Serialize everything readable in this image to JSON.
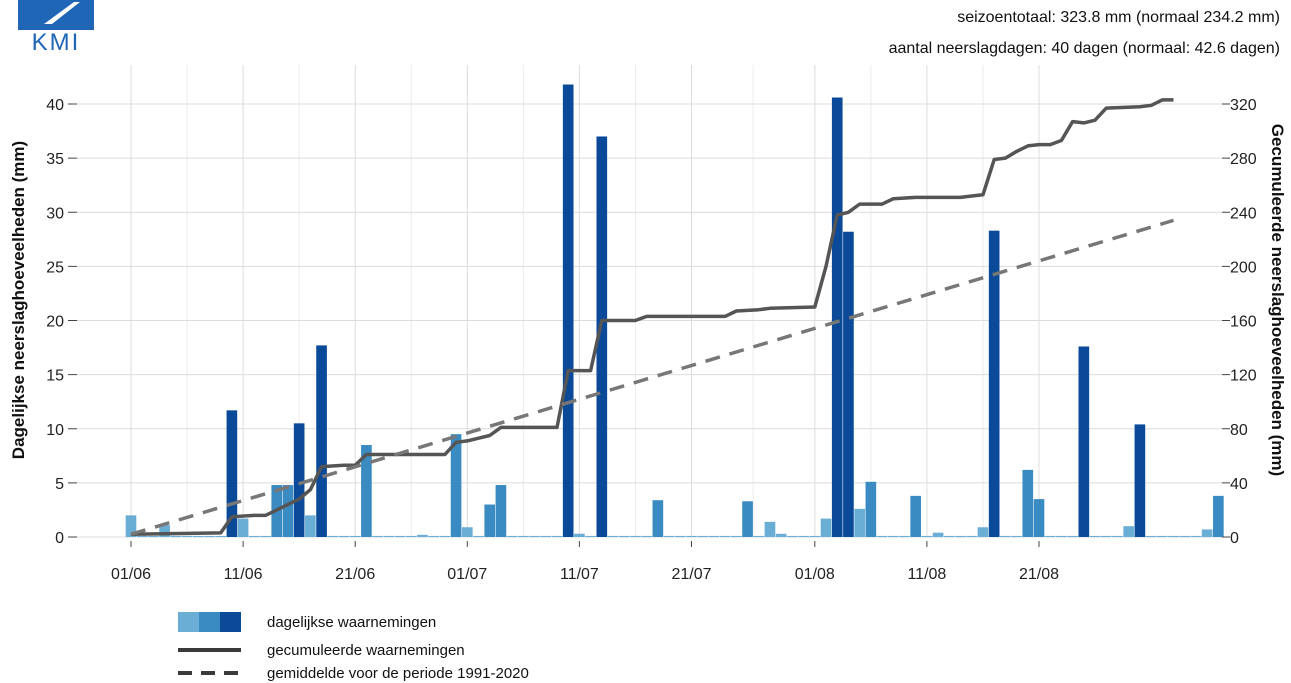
{
  "logo_text": "KMI",
  "header": {
    "season_total": "seizoentotaal: 323.8 mm (normaal 234.2 mm)",
    "rain_days": "aantal neerslagdagen: 40 dagen (normaal: 42.6 dagen)"
  },
  "colors": {
    "light": "#6aaed6",
    "medium": "#3b8bc3",
    "dark": "#0a4a99",
    "cumulative": "#555555",
    "normal": "#777777",
    "logo": "#1f66b7"
  },
  "chart_data": {
    "type": "bar",
    "ylabel_left": "Dagelijkse neerslaghoeveelheden (mm)",
    "ylabel_right": "Gecumuleerde neerslaghoeveelheden (mm)",
    "ylim_left": [
      0,
      42
    ],
    "ylim_right": [
      0,
      336
    ],
    "yticks_left": [
      "0",
      "5",
      "10",
      "15",
      "20",
      "25",
      "30",
      "35",
      "40"
    ],
    "yticks_right": [
      "0",
      "40",
      "80",
      "120",
      "160",
      "200",
      "240",
      "280",
      "320"
    ],
    "x_ticks": [
      {
        "day": 1,
        "label": "01/06"
      },
      {
        "day": 11,
        "label": "11/06"
      },
      {
        "day": 21,
        "label": "21/06"
      },
      {
        "day": 31,
        "label": "01/07"
      },
      {
        "day": 41,
        "label": "11/07"
      },
      {
        "day": 51,
        "label": "21/07"
      },
      {
        "day": 62,
        "label": "01/08"
      },
      {
        "day": 72,
        "label": "11/08"
      },
      {
        "day": 82,
        "label": "21/08"
      }
    ],
    "x_range": [
      1,
      92
    ],
    "grid": true,
    "daily_values": [
      2.0,
      0.1,
      0.1,
      1.1,
      0.1,
      0.1,
      0.1,
      0.1,
      0.1,
      11.7,
      1.7,
      0.1,
      0.1,
      4.8,
      4.8,
      10.5,
      2.0,
      17.7,
      0.1,
      0.1,
      0.1,
      8.5,
      0.1,
      0.1,
      0.1,
      0.1,
      0.2,
      0.1,
      0.1,
      9.5,
      0.9,
      0.1,
      3.0,
      4.8,
      0.1,
      0.1,
      0.1,
      0.1,
      0.1,
      41.8,
      0.3,
      0.1,
      37.0,
      0.1,
      0.1,
      0.1,
      0.1,
      3.4,
      0.1,
      0.1,
      0.1,
      0.1,
      0.1,
      0.1,
      0.1,
      3.3,
      0.1,
      1.4,
      0.3,
      0.1,
      0.1,
      0.1,
      1.7,
      40.6,
      28.2,
      2.6,
      5.1,
      0.1,
      0.1,
      0.1,
      3.8,
      0.1,
      0.4,
      0.1,
      0.1,
      0.1,
      0.9,
      28.3,
      0.1,
      0.1,
      6.2,
      3.5,
      0.1,
      0.1,
      0.1,
      17.6,
      0.1,
      0.1,
      0.1,
      1.0,
      10.4,
      0.1,
      0.1,
      0.1,
      0.1,
      0.1,
      0.7,
      3.8
    ],
    "cumulative_observed": [
      [
        1,
        2
      ],
      [
        9,
        3
      ],
      [
        10,
        15
      ],
      [
        12,
        16
      ],
      [
        13,
        16
      ],
      [
        16,
        28
      ],
      [
        17,
        35
      ],
      [
        18,
        52
      ],
      [
        20,
        53
      ],
      [
        21,
        53
      ],
      [
        22,
        61
      ],
      [
        29,
        61
      ],
      [
        30,
        70
      ],
      [
        31,
        71
      ],
      [
        32,
        73
      ],
      [
        33,
        75
      ],
      [
        34,
        81
      ],
      [
        39,
        81
      ],
      [
        40,
        123
      ],
      [
        42,
        123
      ],
      [
        43,
        160
      ],
      [
        46,
        160
      ],
      [
        47,
        163
      ],
      [
        54,
        163
      ],
      [
        55,
        167
      ],
      [
        57,
        168
      ],
      [
        58,
        169
      ],
      [
        62,
        170
      ],
      [
        63,
        200
      ],
      [
        64,
        238
      ],
      [
        65,
        240
      ],
      [
        66,
        246
      ],
      [
        68,
        246
      ],
      [
        69,
        250
      ],
      [
        71,
        251
      ],
      [
        75,
        251
      ],
      [
        76,
        252
      ],
      [
        77,
        253
      ],
      [
        78,
        279
      ],
      [
        79,
        280
      ],
      [
        80,
        285
      ],
      [
        81,
        289
      ],
      [
        82,
        290
      ],
      [
        83,
        290
      ],
      [
        84,
        293
      ],
      [
        85,
        307
      ],
      [
        86,
        306
      ],
      [
        87,
        308
      ],
      [
        88,
        317
      ],
      [
        91,
        318
      ],
      [
        92,
        319
      ],
      [
        93,
        323
      ],
      [
        94,
        323
      ]
    ],
    "cumulative_normal": [
      [
        1,
        2
      ],
      [
        94,
        234
      ]
    ],
    "legend": [
      {
        "label": "dagelijkse waarnemingen",
        "style": "bars"
      },
      {
        "label": "gecumuleerde waarnemingen",
        "style": "solid"
      },
      {
        "label": "gemiddelde voor de periode 1991-2020",
        "style": "dashed"
      }
    ]
  }
}
